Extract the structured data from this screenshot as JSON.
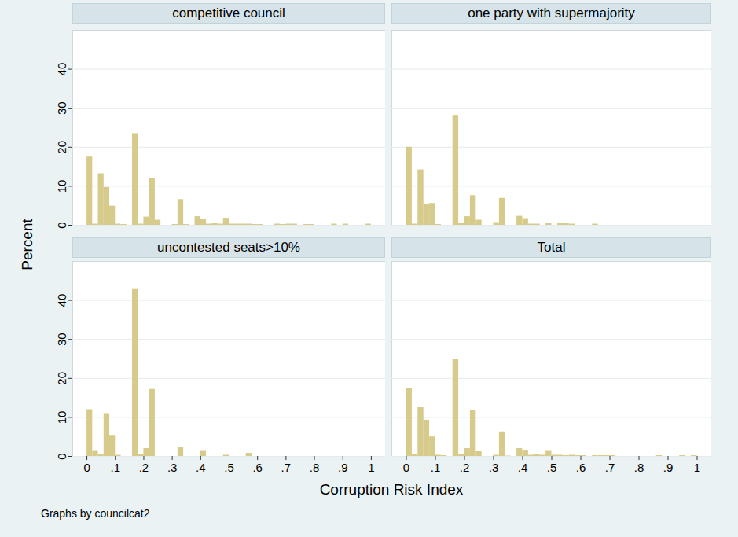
{
  "chart_data": {
    "type": "histogram",
    "x_label": "Corruption Risk Index",
    "y_label": "Percent",
    "caption": "Graphs by councilcat2",
    "bins": [
      0,
      0.02,
      0.04,
      0.06,
      0.08,
      0.1,
      0.12,
      0.14,
      0.16,
      0.18,
      0.2,
      0.22,
      0.24,
      0.26,
      0.28,
      0.3,
      0.32,
      0.34,
      0.36,
      0.38,
      0.4,
      0.42,
      0.44,
      0.46,
      0.48,
      0.5,
      0.52,
      0.54,
      0.56,
      0.58,
      0.6,
      0.62,
      0.64,
      0.66,
      0.68,
      0.7,
      0.72,
      0.74,
      0.76,
      0.78,
      0.8,
      0.82,
      0.84,
      0.86,
      0.88,
      0.9,
      0.92,
      0.94,
      0.96,
      0.98,
      1
    ],
    "xlim": [
      -0.05,
      1.05
    ],
    "ylim": [
      0,
      50
    ],
    "xticks": [
      0,
      {
        "value": 0.1,
        "label": ".1"
      },
      {
        "value": 0.2,
        "label": ".2"
      },
      {
        "value": 0.3,
        "label": ".3"
      },
      {
        "value": 0.4,
        "label": ".4"
      },
      {
        "value": 0.5,
        "label": ".5"
      },
      {
        "value": 0.6,
        "label": ".6"
      },
      {
        "value": 0.7,
        "label": ".7"
      },
      {
        "value": 0.8,
        "label": ".8"
      },
      {
        "value": 0.9,
        "label": ".9"
      },
      1
    ],
    "yticks": [
      0,
      10,
      20,
      30,
      40
    ],
    "grid": true,
    "series": [
      {
        "name": "competitive council",
        "color": "#d6cb8a",
        "values": [
          17.5,
          0.3,
          13.2,
          9.7,
          4.9,
          0.3,
          0.2,
          0,
          23.5,
          0.3,
          2.1,
          12,
          1.3,
          0,
          0,
          0.2,
          6.6,
          0.2,
          0,
          2.2,
          1.5,
          0.3,
          0.5,
          0.3,
          1.8,
          0.3,
          0.3,
          0.3,
          0.3,
          0.2,
          0.2,
          0,
          0,
          0.3,
          0.2,
          0.3,
          0.3,
          0,
          0.2,
          0.2,
          0,
          0,
          0,
          0.3,
          0,
          0.3,
          0,
          0,
          0,
          0.3
        ]
      },
      {
        "name": "one party with supermajority",
        "color": "#d6cb8a",
        "values": [
          20,
          0.3,
          14.2,
          5.4,
          5.6,
          0.2,
          0,
          0,
          28.2,
          0.6,
          2.2,
          7.6,
          1.3,
          0,
          0,
          0.7,
          6.9,
          0,
          0,
          2.3,
          1.7,
          0.3,
          0.3,
          0,
          0.5,
          0,
          0.6,
          0.4,
          0.3,
          0,
          0,
          0,
          0.3,
          0,
          0,
          0,
          0,
          0,
          0,
          0,
          0,
          0,
          0,
          0,
          0,
          0,
          0,
          0,
          0,
          0
        ]
      },
      {
        "name": "uncontested seats>10%",
        "color": "#d6cb8a",
        "values": [
          12,
          1.5,
          0.6,
          11,
          5.4,
          0.3,
          0,
          0,
          43,
          0.4,
          2,
          17.2,
          0,
          0,
          0,
          0,
          2.3,
          0,
          0,
          0,
          1.5,
          0,
          0,
          0,
          0.3,
          0,
          0,
          0,
          0.8,
          0,
          0,
          0,
          0,
          0,
          0,
          0,
          0,
          0,
          0,
          0,
          0,
          0,
          0,
          0,
          0,
          0,
          0,
          0,
          0,
          0
        ]
      },
      {
        "name": "Total",
        "color": "#d6cb8a",
        "values": [
          17.4,
          0.4,
          12.5,
          9.3,
          5,
          0.3,
          0.2,
          0,
          25,
          0.4,
          2,
          11.8,
          1.3,
          0,
          0,
          0.3,
          6.3,
          0.1,
          0,
          2,
          1.6,
          0.3,
          0.4,
          0.3,
          1.5,
          0.3,
          0.3,
          0.2,
          0.3,
          0.2,
          0.2,
          0,
          0.2,
          0.2,
          0.2,
          0.2,
          0,
          0,
          0,
          0,
          0,
          0,
          0,
          0.2,
          0,
          0,
          0,
          0.2,
          0,
          0.2
        ]
      }
    ]
  }
}
